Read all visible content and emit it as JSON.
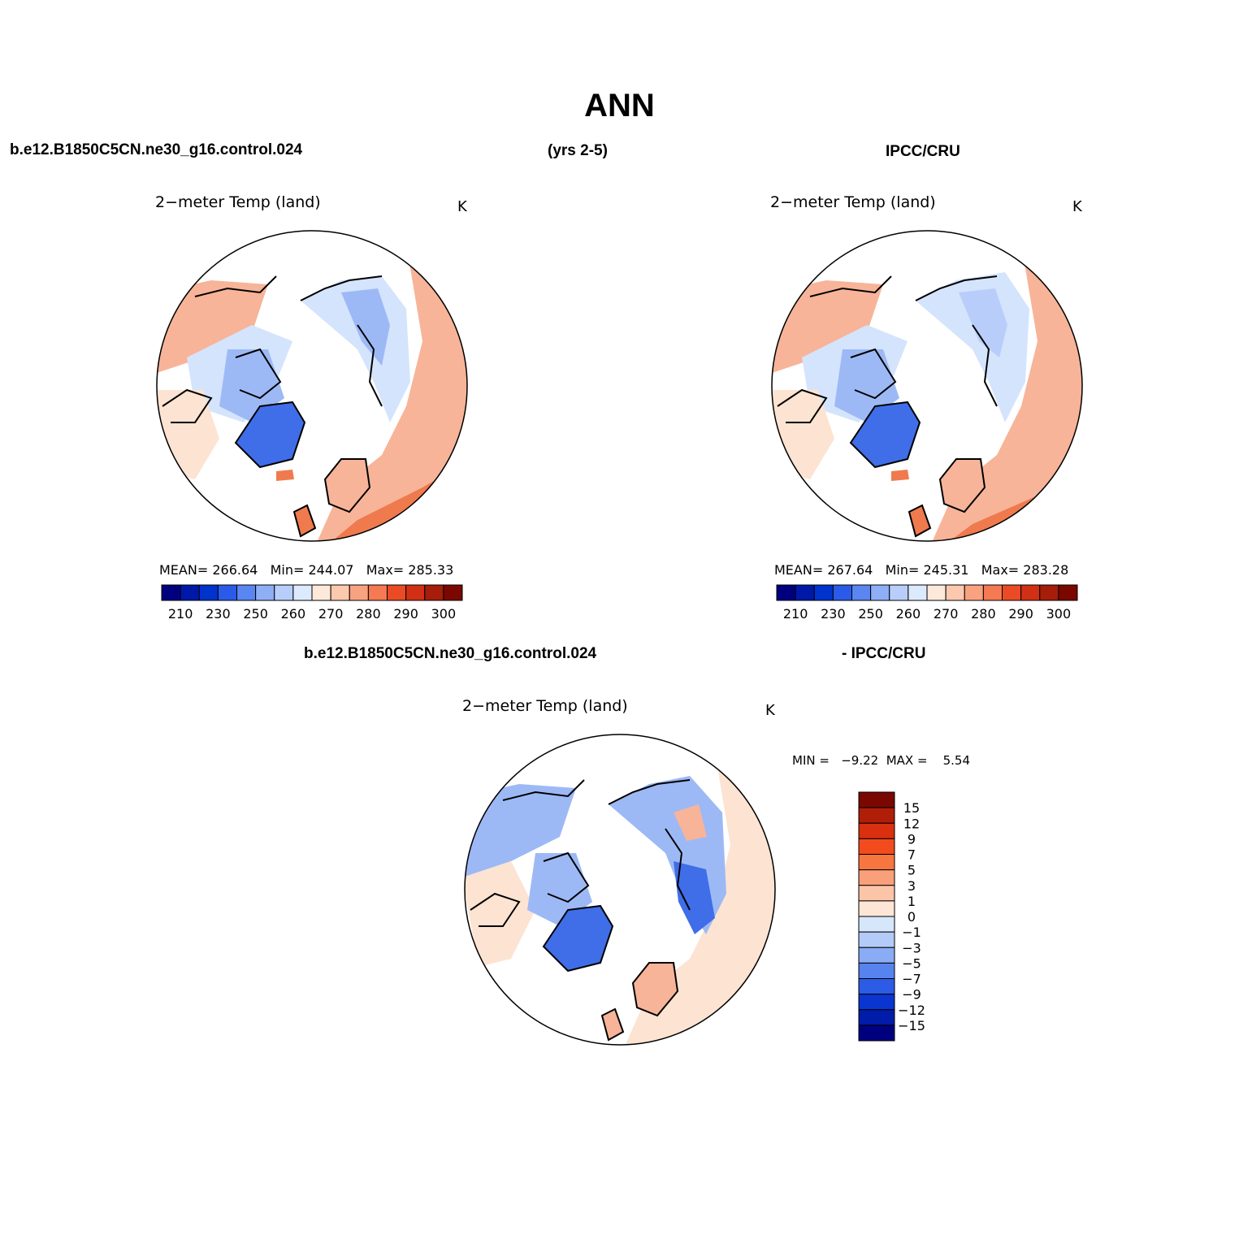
{
  "page_title": "ANN",
  "header_top": {
    "case": "b.e12.B1850C5CN.ne30_g16.control.024",
    "years": "(yrs 2-5)",
    "obs": "IPCC/CRU"
  },
  "header_diff": {
    "case": "b.e12.B1850C5CN.ne30_g16.control.024",
    "obs": "- IPCC/CRU"
  },
  "panels": [
    {
      "id": "model",
      "variable": "2−meter Temp (land)",
      "units": "K",
      "stats": {
        "mean_label": "MEAN=",
        "mean": "266.64",
        "min_label": "Min=",
        "min": "244.07",
        "max_label": "Max=",
        "max": "285.33"
      }
    },
    {
      "id": "obs",
      "variable": "2−meter Temp (land)",
      "units": "K",
      "stats": {
        "mean_label": "MEAN=",
        "mean": "267.64",
        "min_label": "Min=",
        "min": "245.31",
        "max_label": "Max=",
        "max": "283.28"
      }
    },
    {
      "id": "diff",
      "variable": "2−meter Temp (land)",
      "units": "K",
      "stats_text": "MIN =   −9.22  MAX =    5.54"
    }
  ],
  "abs_colorbar": {
    "colors": [
      "#00007f",
      "#0018a8",
      "#0033cc",
      "#2a5be8",
      "#5a86f2",
      "#8eaef6",
      "#b8cdfa",
      "#dceafd",
      "#fde9d9",
      "#fcc9ae",
      "#f9a27f",
      "#f57952",
      "#ea4b25",
      "#d13015",
      "#a61d0a",
      "#7a0800"
    ],
    "labels": [
      "210",
      "230",
      "250",
      "260",
      "270",
      "280",
      "290",
      "300"
    ]
  },
  "diff_colorbar": {
    "colors": [
      "#7a0800",
      "#b01e08",
      "#d9300f",
      "#f24c1e",
      "#f7763f",
      "#f9a07a",
      "#fcc5a8",
      "#fde6d5",
      "#d6e6fb",
      "#b3cbf8",
      "#8aacf4",
      "#5783ef",
      "#2c5be6",
      "#0a35d0",
      "#001ca8",
      "#00007f"
    ],
    "labels": [
      "15",
      "12",
      "9",
      "7",
      "5",
      "3",
      "1",
      "0",
      "−1",
      "−3",
      "−5",
      "−7",
      "−9",
      "−12",
      "−15"
    ]
  },
  "legend_colors": {
    "cold": "#3f6ee8",
    "cool": "#9db9f5",
    "neutral_cold": "#d4e4fd",
    "neutral_warm": "#fde3d2",
    "warm": "#f7b499",
    "hot": "#ef7a4d"
  }
}
